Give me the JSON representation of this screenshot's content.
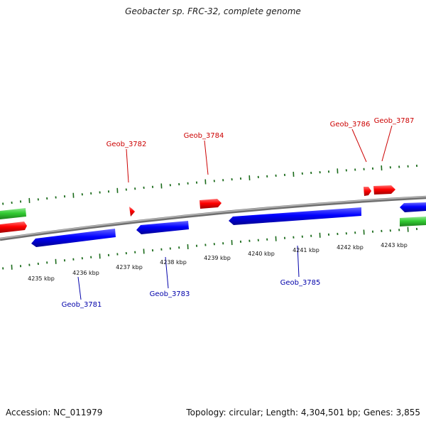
{
  "title": "Geobacter sp. FRC-32, complete genome",
  "footer": {
    "accession": "Accession: NC_011979",
    "summary": "Topology: circular; Length: 4,304,501 bp; Genes: 3,855"
  },
  "colors": {
    "forward_strand_genes": "#ff0000",
    "reverse_strand_genes": "#0000ff",
    "rna_features": "#33cc33",
    "tick_marks": "#1b6b1b",
    "backbone": "#888888",
    "forward_labels": "#cc0000",
    "reverse_labels": "#0000aa"
  },
  "scale": {
    "tick_labels": [
      "4235 kbp",
      "4236 kbp",
      "4237 kbp",
      "4238 kbp",
      "4239 kbp",
      "4240 kbp",
      "4241 kbp",
      "4242 kbp",
      "4243 kbp"
    ]
  },
  "gene_labels": {
    "forward": [
      "Geob_3782",
      "Geob_3784",
      "Geob_3786",
      "Geob_3787"
    ],
    "reverse": [
      "Geob_3781",
      "Geob_3783",
      "Geob_3785"
    ]
  }
}
